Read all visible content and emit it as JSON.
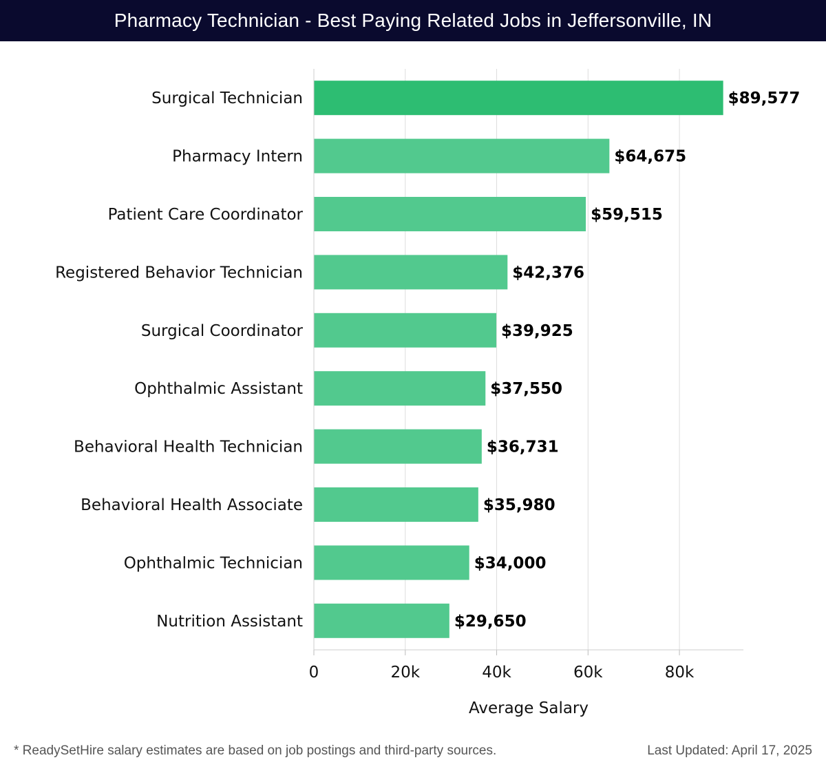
{
  "header": {
    "title": "Pharmacy Technician - Best Paying Related Jobs in Jeffersonville, IN"
  },
  "footer": {
    "note": "* ReadySetHire salary estimates are based on job postings and third-party sources.",
    "updated": "Last Updated: April 17, 2025"
  },
  "colors": {
    "header_bg": "#0a0a2e",
    "bar_top": "#2dbd72",
    "bar": "#52c98e",
    "grid": "#dddddd"
  },
  "chart_data": {
    "type": "bar",
    "orientation": "horizontal",
    "title": "Pharmacy Technician - Best Paying Related Jobs in Jeffersonville, IN",
    "xlabel": "Average Salary",
    "ylabel": "",
    "xlim": [
      0,
      94000
    ],
    "grid": true,
    "ticks": [
      0,
      20000,
      40000,
      60000,
      80000
    ],
    "tick_labels": [
      "0",
      "20k",
      "40k",
      "60k",
      "80k"
    ],
    "categories": [
      "Surgical Technician",
      "Pharmacy Intern",
      "Patient Care Coordinator",
      "Registered Behavior Technician",
      "Surgical Coordinator",
      "Ophthalmic Assistant",
      "Behavioral Health Technician",
      "Behavioral Health Associate",
      "Ophthalmic Technician",
      "Nutrition Assistant"
    ],
    "values": [
      89577,
      64675,
      59515,
      42376,
      39925,
      37550,
      36731,
      35980,
      34000,
      29650
    ],
    "value_labels": [
      "$89,577",
      "$64,675",
      "$59,515",
      "$42,376",
      "$39,925",
      "$37,550",
      "$36,731",
      "$35,980",
      "$34,000",
      "$29,650"
    ]
  }
}
